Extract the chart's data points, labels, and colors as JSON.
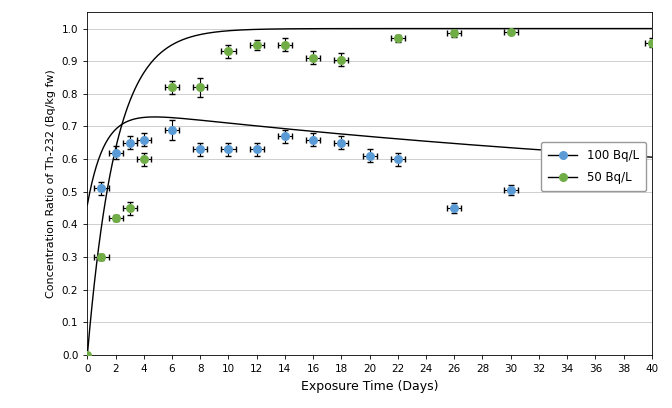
{
  "title": "",
  "xlabel": "Exposure Time (Days)",
  "ylabel": "Concentration Ratio of Th-232 (Bq/kg fw)",
  "xlim": [
    0,
    40
  ],
  "ylim": [
    0.0,
    1.05
  ],
  "yticks": [
    0.0,
    0.1,
    0.2,
    0.3,
    0.4,
    0.5,
    0.6,
    0.7,
    0.8,
    0.9,
    1.0
  ],
  "xticks": [
    0,
    2,
    4,
    6,
    8,
    10,
    12,
    14,
    16,
    18,
    20,
    22,
    24,
    26,
    28,
    30,
    32,
    34,
    36,
    38,
    40
  ],
  "blue_x": [
    1,
    2,
    3,
    4,
    6,
    8,
    10,
    12,
    14,
    16,
    18,
    20,
    22,
    26,
    30
  ],
  "blue_y": [
    0.51,
    0.62,
    0.65,
    0.66,
    0.69,
    0.63,
    0.63,
    0.63,
    0.67,
    0.66,
    0.65,
    0.61,
    0.6,
    0.45,
    0.505
  ],
  "blue_xerr": [
    0.5,
    0.5,
    0.5,
    0.5,
    0.5,
    0.5,
    0.5,
    0.5,
    0.5,
    0.5,
    0.5,
    0.5,
    0.5,
    0.5,
    0.5
  ],
  "blue_yerr": [
    0.02,
    0.02,
    0.02,
    0.02,
    0.03,
    0.02,
    0.02,
    0.02,
    0.02,
    0.02,
    0.02,
    0.02,
    0.02,
    0.015,
    0.015
  ],
  "blue_color": "#5b9bd5",
  "green_x": [
    0,
    1,
    2,
    3,
    4,
    6,
    8,
    10,
    12,
    14,
    16,
    18,
    22,
    26,
    30,
    40
  ],
  "green_y": [
    0.0,
    0.3,
    0.42,
    0.45,
    0.6,
    0.82,
    0.82,
    0.93,
    0.95,
    0.95,
    0.91,
    0.905,
    0.97,
    0.985,
    0.99,
    0.957
  ],
  "green_xerr": [
    0,
    0.5,
    0.5,
    0.5,
    0.5,
    0.5,
    0.5,
    0.5,
    0.5,
    0.5,
    0.5,
    0.5,
    0.5,
    0.5,
    0.5,
    0.5
  ],
  "green_yerr": [
    0,
    0.01,
    0.01,
    0.02,
    0.02,
    0.02,
    0.03,
    0.02,
    0.015,
    0.02,
    0.02,
    0.02,
    0.01,
    0.01,
    0.008,
    0.015
  ],
  "green_color": "#70ad47",
  "legend_labels": [
    "100 Bq/L",
    "50 Bq/L"
  ],
  "background_color": "#ffffff",
  "grid_color": "#c8c8c8"
}
